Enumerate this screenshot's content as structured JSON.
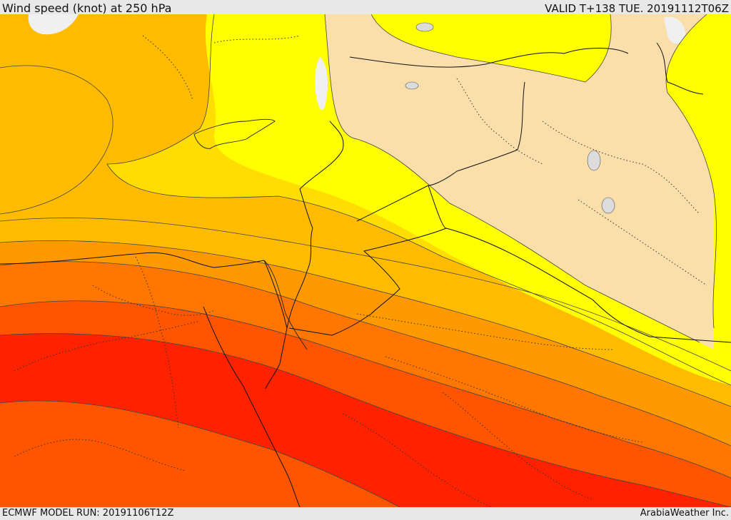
{
  "header": {
    "title": "Wind speed (knot) at 250 hPa",
    "valid_time": "VALID T+138 TUE. 20191112T06Z"
  },
  "footer": {
    "model_run": "ECMWF MODEL RUN: 20191106T12Z",
    "credit": "ArabiaWeather Inc."
  },
  "map": {
    "variable": "wind speed",
    "unit": "knot",
    "pressure_level": "250 hPa",
    "color_bands": [
      "#fadfab",
      "#ffff00",
      "#ffdd00",
      "#ffbb00",
      "#ff9900",
      "#ff7700",
      "#ff5500",
      "#ff2200"
    ],
    "land_mask_color": "#fadfab",
    "water_color": "#f0f0f0"
  }
}
